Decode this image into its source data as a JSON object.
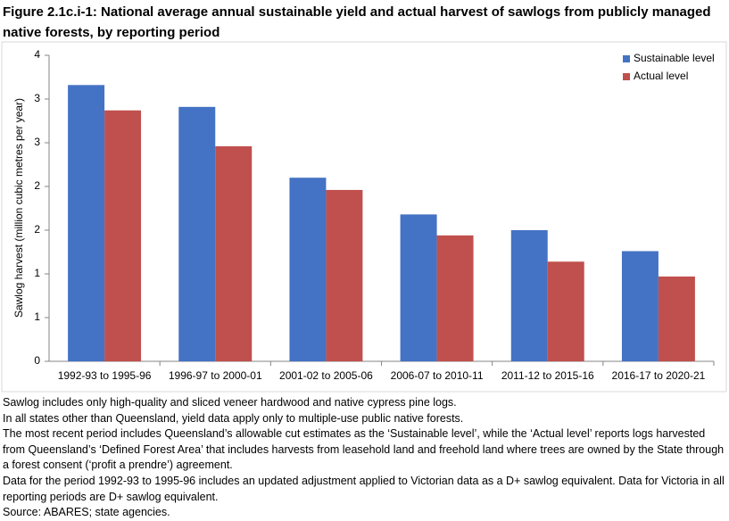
{
  "chart_data": {
    "type": "bar",
    "title": "Figure 2.1c.i-1: National average annual sustainable yield and actual harvest of sawlogs from publicly managed native forests, by reporting period",
    "y_label": "Sawlog harvest (million cubic metres per year)",
    "categories": [
      "1992-93 to 1995-96",
      "1996-97 to 2000-01",
      "2001-02 to 2005-06",
      "2006-07 to 2010-11",
      "2011-12 to 2015-16",
      "2016-17 to 2020-21"
    ],
    "series": [
      {
        "name": "Sustainable level",
        "color": "#4472c4",
        "values": [
          3.16,
          2.91,
          2.1,
          1.68,
          1.5,
          1.26
        ]
      },
      {
        "name": "Actual level",
        "color": "#c0504d",
        "values": [
          2.87,
          2.46,
          1.96,
          1.44,
          1.14,
          0.97
        ]
      }
    ],
    "ylim": [
      0,
      3.5
    ],
    "yticks": [
      0,
      {
        "value": 0.5,
        "label": "1"
      },
      1,
      {
        "value": 1.5,
        "label": "2"
      },
      2,
      {
        "value": 2.5,
        "label": "3"
      },
      3,
      {
        "value": 3.5,
        "label": "4"
      }
    ],
    "legend": "top-right",
    "notes": [
      "Sawlog includes only high-quality and sliced veneer hardwood and native cypress pine logs.",
      "In all states other than Queensland, yield data apply only to multiple-use public native forests.",
      "The most recent period includes Queensland’s allowable cut estimates as the ‘Sustainable level’, while the ‘Actual level’ reports logs harvested from Queensland’s ‘Defined Forest Area’ that includes harvests from leasehold land and freehold land where trees are owned by the State through a forest consent (‘profit a prendre’) agreement.",
      "Data for the period 1992-93 to 1995-96 includes an updated adjustment applied to Victorian data as a D+ sawlog equivalent. Data for Victoria in all reporting periods are D+ sawlog equivalent.",
      "Source: ABARES; state agencies."
    ]
  }
}
